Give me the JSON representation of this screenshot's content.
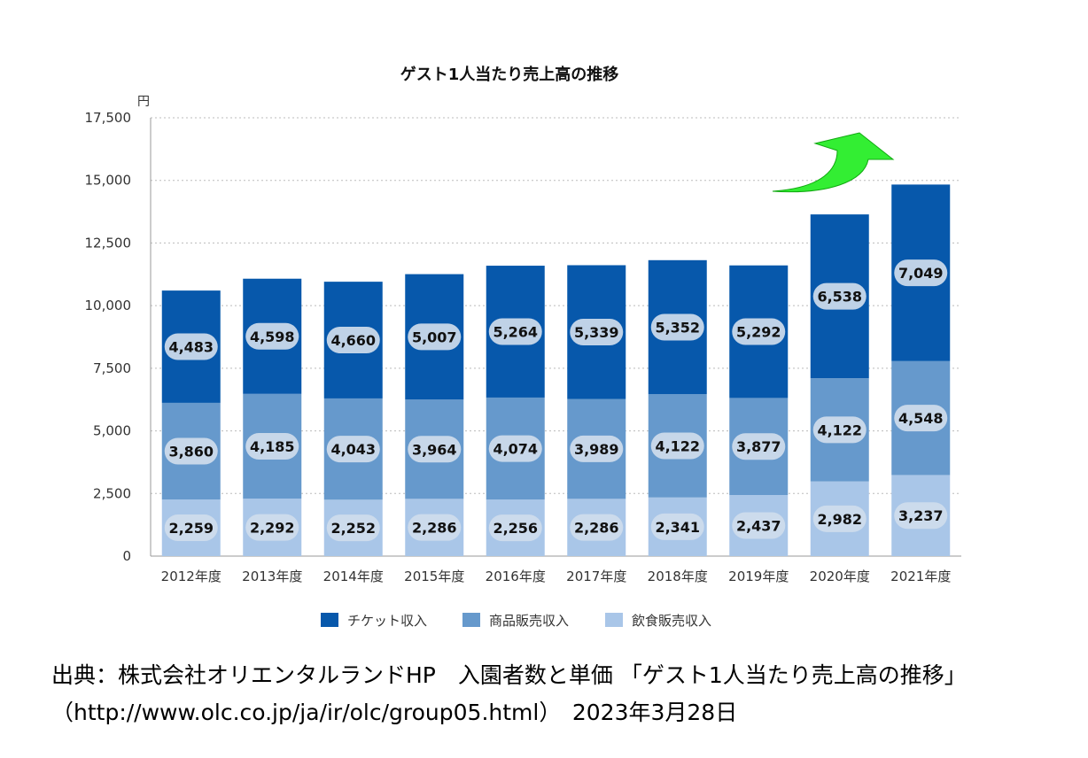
{
  "colors": {
    "ticket": "#0758ab",
    "merchandise": "#6699cc",
    "food": "#a9c6e8",
    "arrow": "#33ee33",
    "grid": "#bbbbbb",
    "label_pill": "#cfdcec"
  },
  "chart_data": {
    "type": "bar",
    "stacked": true,
    "title": "ゲスト1人当たり売上高の推移",
    "unit": "円",
    "categories": [
      "2012年度",
      "2013年度",
      "2014年度",
      "2015年度",
      "2016年度",
      "2017年度",
      "2018年度",
      "2019年度",
      "2020年度",
      "2021年度"
    ],
    "series": [
      {
        "name": "飲食販売収入",
        "color_key": "food",
        "values": [
          2259,
          2292,
          2252,
          2286,
          2256,
          2286,
          2341,
          2437,
          2982,
          3237
        ]
      },
      {
        "name": "商品販売収入",
        "color_key": "merchandise",
        "values": [
          3860,
          4185,
          4043,
          3964,
          4074,
          3989,
          4122,
          3877,
          4122,
          4548
        ]
      },
      {
        "name": "チケット収入",
        "color_key": "ticket",
        "values": [
          4483,
          4598,
          4660,
          5007,
          5264,
          5339,
          5352,
          5292,
          6538,
          7049
        ]
      }
    ],
    "legend_order": [
      "チケット収入",
      "商品販売収入",
      "飲食販売収入"
    ],
    "legend_placement": "bottom",
    "ylim": [
      0,
      17500
    ],
    "yticks": [
      0,
      2500,
      5000,
      7500,
      10000,
      12500,
      15000,
      17500
    ],
    "ytick_labels": [
      "0",
      "2,500",
      "5,000",
      "7,500",
      "10,000",
      "12,500",
      "15,000",
      "17,500"
    ],
    "grid": true,
    "annotation": "green-up-arrow"
  },
  "source": {
    "line1": "出典：株式会社オリエンタルランドHP　入園者数と単価 「ゲスト1人当たり売上高の推移」",
    "line2": "（http://www.olc.co.jp/ja/ir/olc/group05.html）　2023年3月28日"
  }
}
